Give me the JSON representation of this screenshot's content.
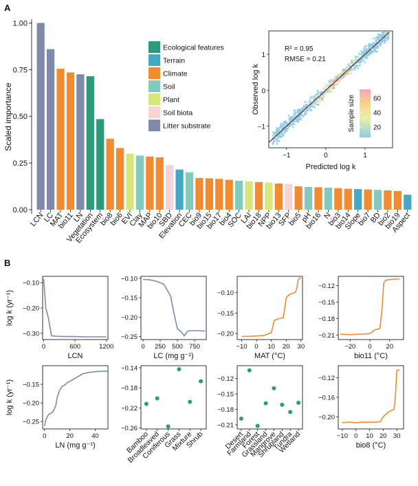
{
  "panel_labels": {
    "a": "A",
    "b": "B"
  },
  "colors": {
    "Ecological features": "#2e9a7c",
    "Terrain": "#45a9c6",
    "Climate": "#f28b30",
    "Soil": "#84c9bd",
    "Plant": "#d9e67c",
    "Soil biota": "#f7d3d3",
    "Litter substrate": "#7d8aaa"
  },
  "chart_data": [
    {
      "id": "importance",
      "type": "bar",
      "ylabel": "Scaled importance",
      "ylim": [
        0,
        1.02
      ],
      "yticks": [
        "0.00",
        "0.25",
        "0.50",
        "0.75",
        "1.00"
      ],
      "ytick_values": [
        0,
        0.25,
        0.5,
        0.75,
        1.0
      ],
      "legend": [
        "Ecological features",
        "Terrain",
        "Climate",
        "Soil",
        "Plant",
        "Soil biota",
        "Litter substrate"
      ],
      "categories": [
        "LCN",
        "LC",
        "MAT",
        "bio11",
        "LN",
        "Vegetation",
        "Ecosystem",
        "bio8",
        "bio6",
        "EVI",
        "Clay",
        "MAP",
        "bio10",
        "SBD",
        "Elevation",
        "CEC",
        "bio9",
        "bio15",
        "bio17",
        "bio4",
        "SOC",
        "LAI",
        "bio18",
        "NPP",
        "bio13",
        "SFP",
        "bio5",
        "pH",
        "bio16",
        "N",
        "bio3",
        "bio14",
        "Slope",
        "bio7",
        "BD",
        "bio2",
        "bio19",
        "Aspect"
      ],
      "values": [
        1.0,
        0.86,
        0.755,
        0.735,
        0.725,
        0.715,
        0.485,
        0.38,
        0.33,
        0.3,
        0.29,
        0.285,
        0.28,
        0.24,
        0.215,
        0.2,
        0.17,
        0.168,
        0.165,
        0.16,
        0.155,
        0.152,
        0.148,
        0.145,
        0.14,
        0.138,
        0.125,
        0.122,
        0.12,
        0.118,
        0.115,
        0.112,
        0.11,
        0.108,
        0.106,
        0.103,
        0.1,
        0.08
      ],
      "groups": [
        "Litter substrate",
        "Litter substrate",
        "Climate",
        "Climate",
        "Litter substrate",
        "Ecological features",
        "Ecological features",
        "Climate",
        "Climate",
        "Plant",
        "Soil",
        "Climate",
        "Climate",
        "Soil biota",
        "Terrain",
        "Soil",
        "Climate",
        "Climate",
        "Climate",
        "Climate",
        "Soil",
        "Plant",
        "Climate",
        "Plant",
        "Climate",
        "Soil biota",
        "Climate",
        "Soil",
        "Climate",
        "Soil",
        "Climate",
        "Climate",
        "Terrain",
        "Climate",
        "Soil",
        "Climate",
        "Climate",
        "Terrain"
      ]
    },
    {
      "id": "inset",
      "type": "scatter",
      "xlabel": "Predicted log k",
      "ylabel": "Observed log k",
      "xlim": [
        -1.45,
        1.7
      ],
      "ylim": [
        -1.6,
        1.65
      ],
      "xticks": [
        -1,
        0,
        1
      ],
      "yticks": [
        -1,
        0,
        1
      ],
      "xtick_labels": [
        "−1",
        "0",
        "1"
      ],
      "ytick_labels": [
        "−1",
        "0",
        "1"
      ],
      "annotations": [
        "R² = 0.95",
        "RMSE = 0.21"
      ],
      "colorbar_label": "Sample size",
      "colorbar_ticks": [
        "20",
        "40",
        "60"
      ],
      "colorbar_values": [
        20,
        40,
        60
      ],
      "colorbar_range": [
        5,
        72
      ],
      "fit_line": [
        [
          -1.6,
          -1.6
        ],
        [
          1.75,
          1.75
        ]
      ]
    },
    {
      "id": "pdp-lcn",
      "type": "line",
      "xlabel": "LCN",
      "ylabel": "log k (yr⁻¹)",
      "xlim": [
        -20,
        1230
      ],
      "ylim": [
        -0.325,
        -0.075
      ],
      "xticks": [
        0,
        600,
        1200
      ],
      "xtick_labels": [
        "0",
        "600",
        "1200"
      ],
      "yticks": [
        -0.1,
        -0.2,
        -0.3
      ],
      "ytick_labels": [
        "−0.10",
        "−0.20",
        "−0.30"
      ],
      "x": [
        0,
        40,
        90,
        150,
        250,
        400,
        600,
        800,
        1000,
        1200
      ],
      "y": [
        -0.085,
        -0.2,
        -0.24,
        -0.31,
        -0.312,
        -0.313,
        -0.313,
        -0.314,
        -0.314,
        -0.314
      ],
      "color": "#7d8aaa"
    },
    {
      "id": "pdp-lc",
      "type": "line",
      "xlabel": "LC (mg g⁻¹)",
      "xlim": [
        -30,
        920
      ],
      "ylim": [
        -0.258,
        -0.095
      ],
      "xticks": [
        0,
        250,
        500,
        750
      ],
      "xtick_labels": [
        "0",
        "250",
        "500",
        "750"
      ],
      "yticks": [
        -0.1,
        -0.15,
        -0.2,
        -0.25
      ],
      "ytick_labels": [
        "−0.10",
        "−0.15",
        "−0.20",
        "−0.25"
      ],
      "x": [
        0,
        100,
        200,
        300,
        400,
        450,
        500,
        550,
        600,
        650,
        700,
        800,
        900
      ],
      "y": [
        -0.103,
        -0.104,
        -0.108,
        -0.115,
        -0.145,
        -0.19,
        -0.23,
        -0.237,
        -0.248,
        -0.236,
        -0.235,
        -0.235,
        -0.236
      ],
      "color": "#7d8aaa"
    },
    {
      "id": "pdp-mat",
      "type": "line",
      "xlabel": "MAT (°C)",
      "xlim": [
        -13,
        31
      ],
      "ylim": [
        -0.215,
        -0.06
      ],
      "xticks": [
        -10,
        0,
        10,
        20,
        30
      ],
      "xtick_labels": [
        "−10",
        "0",
        "10",
        "20",
        "30"
      ],
      "yticks": [
        -0.1,
        -0.15,
        -0.2
      ],
      "ytick_labels": [
        "−0.10",
        "−0.15",
        "−0.20"
      ],
      "x": [
        -10,
        -5,
        0,
        5,
        10,
        12,
        14,
        16,
        18,
        19,
        20,
        22,
        24,
        26,
        27,
        28,
        29,
        30
      ],
      "y": [
        -0.207,
        -0.207,
        -0.206,
        -0.205,
        -0.198,
        -0.168,
        -0.165,
        -0.163,
        -0.162,
        -0.14,
        -0.112,
        -0.105,
        -0.102,
        -0.1,
        -0.092,
        -0.07,
        -0.064,
        -0.065
      ],
      "color": "#f28b30"
    },
    {
      "id": "pdp-bio11",
      "type": "line",
      "xlabel": "bio11 (°C)",
      "xlim": [
        -32,
        34
      ],
      "ylim": [
        -0.218,
        -0.103
      ],
      "xticks": [
        -20,
        0,
        20
      ],
      "xtick_labels": [
        "−20",
        "0",
        "20"
      ],
      "yticks": [
        -0.12,
        -0.15,
        -0.18,
        -0.21
      ],
      "ytick_labels": [
        "−0.12",
        "−0.15",
        "−0.18",
        "−0.21"
      ],
      "x": [
        -30,
        -20,
        -10,
        -5,
        0,
        5,
        8,
        10,
        12,
        14,
        16,
        20,
        25,
        30
      ],
      "y": [
        -0.208,
        -0.209,
        -0.208,
        -0.208,
        -0.207,
        -0.2,
        -0.199,
        -0.198,
        -0.168,
        -0.115,
        -0.11,
        -0.109,
        -0.108,
        -0.108
      ],
      "color": "#f28b30"
    },
    {
      "id": "pdp-ln",
      "type": "line",
      "xlabel": "LN (mg g⁻¹)",
      "ylabel": "log k (yr⁻¹)",
      "xlim": [
        -1.5,
        50
      ],
      "ylim": [
        -0.27,
        -0.1
      ],
      "xticks": [
        0,
        20,
        40
      ],
      "xtick_labels": [
        "0",
        "20",
        "40"
      ],
      "yticks": [
        -0.15,
        -0.2,
        -0.25
      ],
      "ytick_labels": [
        "−0.15",
        "−0.20",
        "−0.25"
      ],
      "x": [
        0,
        1,
        3,
        5,
        7,
        9,
        10,
        12,
        14,
        16,
        18,
        20,
        25,
        30,
        35,
        40,
        45,
        50
      ],
      "y": [
        -0.262,
        -0.245,
        -0.232,
        -0.228,
        -0.222,
        -0.205,
        -0.185,
        -0.165,
        -0.155,
        -0.152,
        -0.145,
        -0.142,
        -0.132,
        -0.122,
        -0.118,
        -0.116,
        -0.115,
        -0.115
      ],
      "color": "#7d8aaa"
    },
    {
      "id": "pdp-vegetation",
      "type": "scatter",
      "ylim": [
        -0.262,
        -0.136
      ],
      "yticks": [
        -0.14,
        -0.18,
        -0.22,
        -0.26
      ],
      "ytick_labels": [
        "−0.14",
        "−0.18",
        "−0.22",
        "−0.26"
      ],
      "categories": [
        "Bamboo",
        "Broadleaved",
        "Coniferous",
        "Grass",
        "Mixture",
        "Shrub"
      ],
      "values": [
        -0.212,
        -0.201,
        -0.257,
        -0.143,
        -0.208,
        -0.167
      ],
      "color": "#2e9a7c"
    },
    {
      "id": "pdp-ecosystem",
      "type": "scatter",
      "ylim": [
        -0.218,
        -0.095
      ],
      "yticks": [
        -0.12,
        -0.15,
        -0.18,
        -0.21
      ],
      "ytick_labels": [
        "−0.12",
        "−0.15",
        "−0.18",
        "−0.21"
      ],
      "categories": [
        "Desert",
        "Farmland",
        "Forest",
        "Grassland",
        "Mangrove",
        "Shrubland",
        "Tundra",
        "Wetland"
      ],
      "values": [
        -0.198,
        -0.104,
        -0.212,
        -0.168,
        -0.139,
        -0.171,
        -0.185,
        -0.167
      ],
      "color": "#2e9a7c"
    },
    {
      "id": "pdp-bio8",
      "type": "line",
      "xlabel": "bio8 (°C)",
      "xlim": [
        -13,
        35
      ],
      "ylim": [
        -0.225,
        -0.095
      ],
      "xticks": [
        -10,
        0,
        10,
        20,
        30
      ],
      "xtick_labels": [
        "−10",
        "0",
        "10",
        "20",
        "30"
      ],
      "yticks": [
        -0.12,
        -0.16,
        -0.2
      ],
      "ytick_labels": [
        "−0.12",
        "−0.16",
        "−0.20"
      ],
      "x": [
        -10,
        -5,
        0,
        5,
        10,
        15,
        18,
        20,
        22,
        24,
        26,
        28,
        29,
        30,
        31,
        32
      ],
      "y": [
        -0.212,
        -0.211,
        -0.212,
        -0.211,
        -0.211,
        -0.211,
        -0.21,
        -0.2,
        -0.195,
        -0.19,
        -0.187,
        -0.185,
        -0.16,
        -0.105,
        -0.104,
        -0.104
      ],
      "color": "#f28b30"
    }
  ]
}
